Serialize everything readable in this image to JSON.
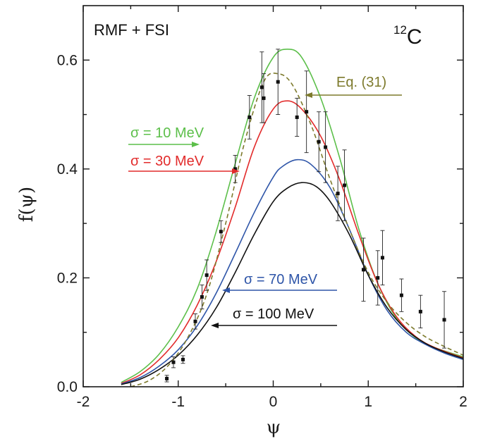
{
  "chart_data": {
    "type": "line",
    "title": "",
    "xlabel": "ψ",
    "ylabel": "f(ψ)",
    "xlim": [
      -2,
      2
    ],
    "ylim": [
      0,
      0.7
    ],
    "x_ticks": [
      -2,
      -1,
      0,
      1,
      2
    ],
    "y_ticks": [
      0.0,
      0.2,
      0.4,
      0.6
    ],
    "x_tick_labels": [
      "-2",
      "-1",
      "0",
      "1",
      "2"
    ],
    "y_tick_labels": [
      "0.0",
      "0.2",
      "0.4",
      "0.6"
    ],
    "grid": false,
    "annotations": {
      "model": "RMF + FSI",
      "nucleus_mass": "12",
      "nucleus_symbol": "C"
    },
    "series": [
      {
        "name": "σ = 10 MeV",
        "color": "#5cbf4a",
        "style": "solid",
        "x": [
          -1.6,
          -1.4,
          -1.2,
          -1.0,
          -0.8,
          -0.6,
          -0.4,
          -0.2,
          0.0,
          0.15,
          0.3,
          0.5,
          0.7,
          0.9,
          1.1,
          1.3,
          1.5,
          1.7,
          2.0
        ],
        "y": [
          0.008,
          0.028,
          0.06,
          0.11,
          0.18,
          0.285,
          0.41,
          0.53,
          0.605,
          0.62,
          0.605,
          0.53,
          0.42,
          0.29,
          0.19,
          0.125,
          0.09,
          0.072,
          0.055
        ]
      },
      {
        "name": "σ = 30 MeV",
        "color": "#e22b2b",
        "style": "solid",
        "x": [
          -1.6,
          -1.4,
          -1.2,
          -1.0,
          -0.8,
          -0.6,
          -0.4,
          -0.2,
          0.0,
          0.15,
          0.3,
          0.5,
          0.7,
          0.9,
          1.1,
          1.3,
          1.5,
          1.7,
          2.0
        ],
        "y": [
          0.006,
          0.022,
          0.05,
          0.09,
          0.15,
          0.23,
          0.33,
          0.44,
          0.51,
          0.525,
          0.51,
          0.46,
          0.38,
          0.28,
          0.19,
          0.128,
          0.092,
          0.072,
          0.053
        ]
      },
      {
        "name": "σ = 70 MeV",
        "color": "#2e55a8",
        "style": "solid",
        "x": [
          -1.6,
          -1.4,
          -1.2,
          -1.0,
          -0.8,
          -0.6,
          -0.4,
          -0.2,
          0.0,
          0.1,
          0.25,
          0.4,
          0.6,
          0.8,
          1.0,
          1.2,
          1.4,
          1.6,
          1.8,
          2.0
        ],
        "y": [
          0.005,
          0.017,
          0.038,
          0.068,
          0.112,
          0.172,
          0.245,
          0.32,
          0.385,
          0.405,
          0.417,
          0.408,
          0.365,
          0.29,
          0.205,
          0.14,
          0.1,
          0.078,
          0.062,
          0.05
        ]
      },
      {
        "name": "σ = 100 MeV",
        "color": "#111111",
        "style": "solid",
        "x": [
          -1.6,
          -1.4,
          -1.2,
          -1.0,
          -0.8,
          -0.6,
          -0.4,
          -0.2,
          0.0,
          0.15,
          0.3,
          0.45,
          0.6,
          0.8,
          1.0,
          1.2,
          1.4,
          1.6,
          1.8,
          2.0
        ],
        "y": [
          0.004,
          0.014,
          0.032,
          0.058,
          0.095,
          0.145,
          0.21,
          0.28,
          0.34,
          0.365,
          0.375,
          0.368,
          0.34,
          0.28,
          0.205,
          0.145,
          0.105,
          0.08,
          0.064,
          0.052
        ]
      },
      {
        "name": "Eq. (31)",
        "color": "#7d7a2c",
        "style": "dashed",
        "x": [
          -1.5,
          -1.3,
          -1.1,
          -0.9,
          -0.7,
          -0.5,
          -0.3,
          -0.1,
          0.05,
          0.2,
          0.4,
          0.6,
          0.8,
          1.0,
          1.2,
          1.4,
          1.6,
          1.8,
          2.0
        ],
        "y": [
          0.0,
          0.012,
          0.04,
          0.09,
          0.17,
          0.3,
          0.45,
          0.56,
          0.575,
          0.555,
          0.48,
          0.38,
          0.29,
          0.21,
          0.155,
          0.118,
          0.092,
          0.074,
          0.058
        ]
      }
    ],
    "data_points": {
      "name": "",
      "x": [
        -1.12,
        -1.05,
        -0.95,
        -0.82,
        -0.75,
        -0.7,
        -0.55,
        -0.4,
        -0.25,
        -0.12,
        -0.1,
        0.05,
        0.25,
        0.35,
        0.48,
        0.55,
        0.68,
        0.75,
        0.95,
        1.1,
        1.15,
        1.35,
        1.55,
        1.8
      ],
      "y": [
        0.015,
        0.045,
        0.05,
        0.12,
        0.165,
        0.205,
        0.285,
        0.4,
        0.495,
        0.55,
        0.53,
        0.56,
        0.495,
        0.505,
        0.45,
        0.44,
        0.355,
        0.37,
        0.215,
        0.2,
        0.237,
        0.168,
        0.138,
        0.123
      ],
      "err": [
        0.006,
        0.01,
        0.007,
        0.014,
        0.022,
        0.028,
        0.02,
        0.025,
        0.04,
        0.065,
        0.045,
        0.06,
        0.035,
        0.075,
        0.055,
        0.065,
        0.05,
        0.065,
        0.058,
        0.05,
        0.05,
        0.03,
        0.03,
        0.052
      ]
    }
  }
}
